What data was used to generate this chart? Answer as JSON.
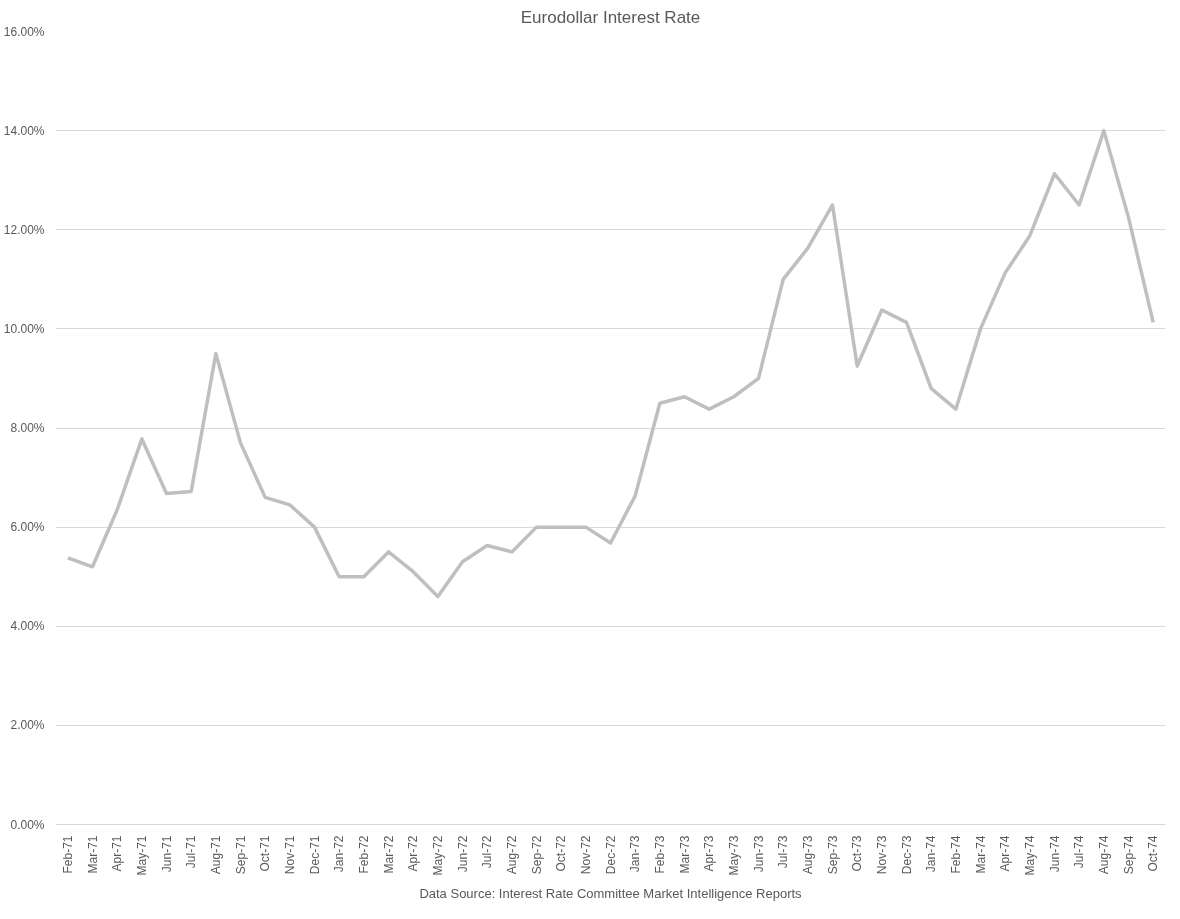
{
  "chart_data": {
    "type": "line",
    "title": "Eurodollar Interest Rate",
    "annotations": [
      "Data Source: Interest Rate Committee Market Intelligence Reports"
    ],
    "categories": [
      "Feb-71",
      "Mar-71",
      "Apr-71",
      "May-71",
      "Jun-71",
      "Jul-71",
      "Aug-71",
      "Sep-71",
      "Oct-71",
      "Nov-71",
      "Dec-71",
      "Jan-72",
      "Feb-72",
      "Mar-72",
      "Apr-72",
      "May-72",
      "Jun-72",
      "Jul-72",
      "Aug-72",
      "Sep-72",
      "Oct-72",
      "Nov-72",
      "Dec-72",
      "Jan-73",
      "Feb-73",
      "Mar-73",
      "Apr-73",
      "May-73",
      "Jun-73",
      "Jul-73",
      "Aug-73",
      "Sep-73",
      "Oct-73",
      "Nov-73",
      "Dec-73",
      "Jan-74",
      "Feb-74",
      "Mar-74",
      "Apr-74",
      "May-74",
      "Jun-74",
      "Jul-74",
      "Aug-74",
      "Sep-74",
      "Oct-74"
    ],
    "series": [
      {
        "color": "#bfbfbf",
        "values": [
          5.38,
          5.2,
          6.35,
          7.78,
          6.68,
          6.72,
          9.5,
          7.7,
          6.6,
          6.45,
          6.0,
          5.0,
          5.0,
          5.5,
          5.1,
          4.6,
          5.3,
          5.63,
          5.5,
          6.0,
          6.0,
          6.0,
          5.68,
          6.63,
          8.5,
          8.63,
          8.38,
          8.63,
          9.0,
          11.0,
          11.63,
          12.5,
          9.25,
          10.38,
          10.13,
          8.8,
          8.38,
          10.0,
          11.13,
          11.88,
          13.13,
          12.5,
          14.0,
          12.25,
          10.13
        ]
      }
    ],
    "ylim": [
      0,
      16
    ],
    "yticks": [
      {
        "value": 0,
        "label": "0.00%"
      },
      {
        "value": 2,
        "label": "2.00%"
      },
      {
        "value": 4,
        "label": "4.00%"
      },
      {
        "value": 6,
        "label": "6.00%"
      },
      {
        "value": 8,
        "label": "8.00%"
      },
      {
        "value": 10,
        "label": "10.00%"
      },
      {
        "value": 12,
        "label": "12.00%"
      },
      {
        "value": 14,
        "label": "14.00%"
      },
      {
        "value": 16,
        "label": "16.00%"
      }
    ],
    "grid": "y",
    "marker": "none",
    "line_style": "solid"
  }
}
